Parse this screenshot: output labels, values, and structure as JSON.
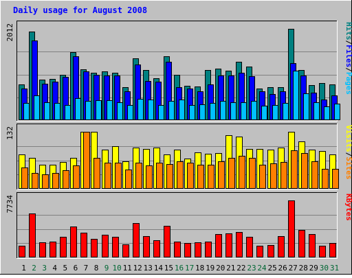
{
  "colors": {
    "background": "#C0C0C0",
    "title": "#0000FF",
    "text": "#000000",
    "weekend_day": "#006633",
    "hits": "#008080",
    "files": "#0000FF",
    "pages": "#00C0FF",
    "visits": "#FFFF00",
    "sites": "#FF8000",
    "kbytes": "#FF0000"
  },
  "chart_data": {
    "type": "bar",
    "title": "Daily usage for August 2008",
    "categories": [
      "1",
      "2",
      "3",
      "4",
      "5",
      "6",
      "7",
      "8",
      "9",
      "10",
      "11",
      "12",
      "13",
      "14",
      "15",
      "16",
      "17",
      "18",
      "19",
      "20",
      "21",
      "22",
      "23",
      "24",
      "25",
      "26",
      "27",
      "28",
      "29",
      "30",
      "31"
    ],
    "weekend_days": [
      "2",
      "3",
      "9",
      "10",
      "16",
      "17",
      "23",
      "24",
      "30",
      "31"
    ],
    "panels": [
      {
        "name": "hits-files-pages",
        "max_label": "2012",
        "ymax": 2012,
        "legend": [
          {
            "label": "Hits",
            "color": "#008080"
          },
          {
            "label": "/",
            "color": "#000000"
          },
          {
            "label": "Files",
            "color": "#0000FF"
          },
          {
            "label": "/",
            "color": "#000000"
          },
          {
            "label": "Pages",
            "color": "#00C0FF"
          }
        ],
        "series": [
          {
            "name": "Hits",
            "color": "#008080",
            "values": [
              780,
              1950,
              900,
              910,
              1000,
              1500,
              1120,
              1050,
              1080,
              1040,
              720,
              1360,
              1110,
              930,
              1400,
              1000,
              750,
              740,
              1100,
              1140,
              1090,
              1280,
              1180,
              690,
              720,
              730,
              2012,
              1110,
              770,
              820,
              790
            ]
          },
          {
            "name": "Files",
            "color": "#0000FF",
            "values": [
              700,
              1750,
              800,
              850,
              950,
              1400,
              1070,
              1000,
              980,
              980,
              630,
              1230,
              860,
              840,
              1280,
              730,
              700,
              640,
              780,
              980,
              980,
              1040,
              970,
              630,
              570,
              630,
              1250,
              980,
              610,
              450,
              540
            ]
          },
          {
            "name": "Pages",
            "color": "#00C0FF",
            "values": [
              380,
              540,
              390,
              380,
              340,
              480,
              430,
              440,
              440,
              390,
              340,
              470,
              460,
              340,
              420,
              450,
              340,
              350,
              380,
              420,
              390,
              400,
              430,
              320,
              330,
              380,
              1090,
              590,
              400,
              300,
              370
            ]
          }
        ]
      },
      {
        "name": "visits-sites",
        "max_label": "132",
        "ymax": 132,
        "legend": [
          {
            "label": "Visits",
            "color": "#FFFF00"
          },
          {
            "label": "/",
            "color": "#000000"
          },
          {
            "label": "Sites",
            "color": "#FF8000"
          }
        ],
        "series": [
          {
            "name": "Visits",
            "color": "#FFFF00",
            "values": [
              80,
              72,
              55,
              55,
              62,
              71,
              132,
              132,
              91,
              98,
              64,
              96,
              93,
              95,
              80,
              91,
              70,
              84,
              81,
              83,
              124,
              121,
              92,
              93,
              91,
              96,
              132,
              109,
              91,
              88,
              80
            ]
          },
          {
            "name": "Sites",
            "color": "#FF8000",
            "values": [
              50,
              36,
              33,
              36,
              43,
              54,
              132,
              72,
              61,
              60,
              44,
              60,
              54,
              60,
              58,
              64,
              60,
              56,
              56,
              64,
              72,
              76,
              72,
              56,
              59,
              62,
              89,
              83,
              64,
              46,
              46
            ]
          }
        ]
      },
      {
        "name": "kbytes",
        "max_label": "7734",
        "ymax": 7734,
        "legend": [
          {
            "label": "KBytes",
            "color": "#FF0000"
          }
        ],
        "series": [
          {
            "name": "KBytes",
            "color": "#FF0000",
            "values": [
              1580,
              5960,
              2070,
              2160,
              2760,
              4150,
              3330,
              2540,
              3120,
              2840,
              1730,
              4620,
              2880,
              2320,
              4290,
              2110,
              1980,
              2070,
              2160,
              3180,
              3280,
              3480,
              2760,
              1630,
              1720,
              2920,
              7734,
              3720,
              3150,
              1580,
              1920
            ]
          }
        ]
      }
    ]
  }
}
